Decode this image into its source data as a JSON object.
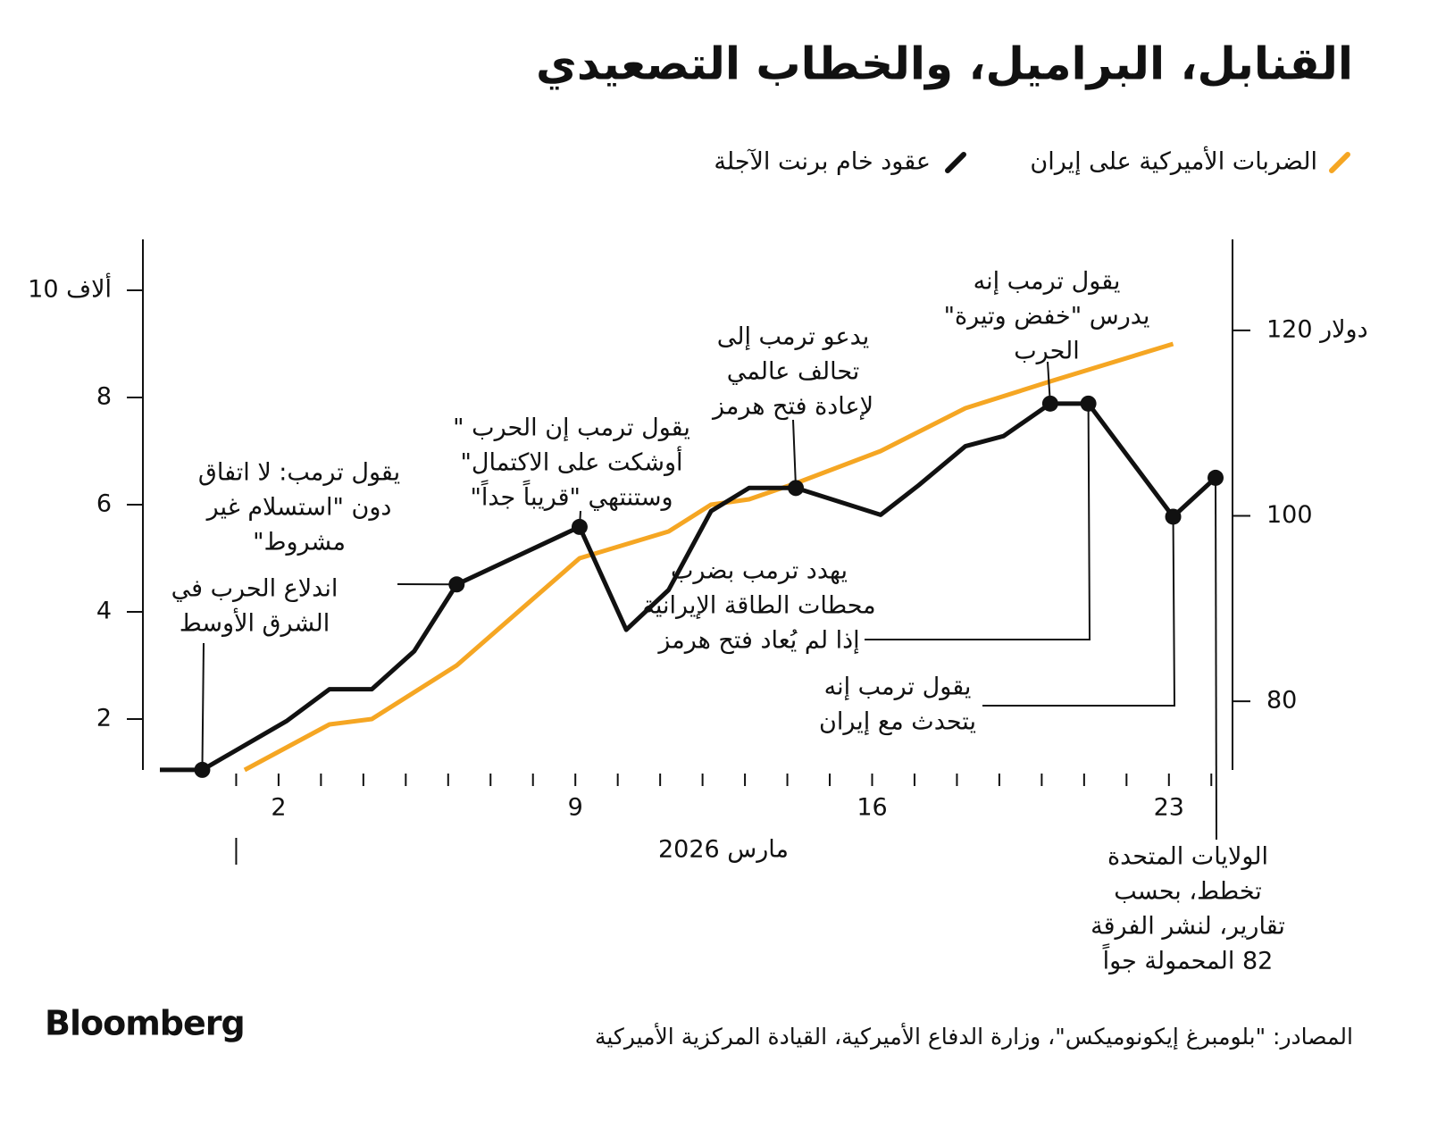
{
  "chart_data": {
    "type": "line",
    "title": "القنابل، البراميل، والخطاب التصعيدي",
    "x_label": "مارس 2026",
    "xlim": [
      -1.2,
      24.5
    ],
    "xticks": [
      2,
      9,
      16,
      23
    ],
    "xticks_minor": [
      3,
      4,
      5,
      6,
      7,
      8,
      10,
      11,
      12,
      13,
      14,
      15,
      17,
      18,
      19,
      20,
      21,
      22,
      24
    ],
    "month_start": 1,
    "ylim": [
      1,
      11
    ],
    "yticks": [
      2,
      4,
      6,
      8,
      {
        "value": 10,
        "label": "10 ألاف"
      }
    ],
    "y2lim": [
      72.3,
      130.1
    ],
    "y2ticks": [
      80,
      100,
      {
        "value": 120,
        "label": "120 دولار"
      }
    ],
    "series": [
      {
        "name": "الضربات الأميركية على إيران",
        "color": "#f5a623",
        "x": [
          1.2,
          3.2,
          4.2,
          6.2,
          9.1,
          11.2,
          12.2,
          13.1,
          14.2,
          16.2,
          18.2,
          20.2,
          23.1
        ],
        "values": [
          1.05,
          1.9,
          2.0,
          3.0,
          5.0,
          5.5,
          6.0,
          6.1,
          6.4,
          7.0,
          7.8,
          8.3,
          9.0
        ]
      },
      {
        "name": "عقود خام برنت الآجلة",
        "color": "#111111",
        "axis": "y2",
        "x": [
          -0.8,
          0.2,
          2.2,
          3.2,
          4.2,
          5.2,
          6.2,
          9.1,
          10.2,
          11.2,
          12.2,
          13.1,
          14.2,
          16.2,
          17.1,
          18.2,
          19.1,
          20.2,
          21.1,
          23.1,
          24.1
        ],
        "values": [
          72.6,
          72.6,
          77.9,
          81.3,
          81.3,
          85.4,
          92.6,
          98.8,
          87.7,
          92.0,
          100.5,
          103.0,
          103.0,
          100.1,
          103.3,
          107.5,
          108.6,
          112.1,
          112.1,
          99.9,
          104.1
        ],
        "markers": [
          1,
          6,
          7,
          12,
          17,
          18,
          19,
          20
        ]
      }
    ],
    "annotations": [
      {
        "lines": [
          "اندلاع الحرب في",
          "الشرق الأوسط"
        ],
        "point": 1
      },
      {
        "lines": [
          "يقول ترمب: لا اتفاق",
          "دون \"استسلام غير",
          "مشروط\""
        ],
        "point": 6
      },
      {
        "lines": [
          "يقول ترمب إن الحرب \"",
          "أوشكت على الاكتمال\"",
          "وستنتهي \"قريباً جداً\""
        ],
        "point": 7
      },
      {
        "lines": [
          "يدعو ترمب إلى",
          "تحالف عالمي",
          "لإعادة فتح هرمز"
        ],
        "point": 12
      },
      {
        "lines": [
          "يقول ترمب إنه",
          "يدرس \"خفض وتيرة\"",
          "الحرب"
        ],
        "point": 17
      },
      {
        "lines": [
          "يهدد ترمب بضرب",
          "محطات الطاقة الإيرانية",
          "إذا لم يُعاد فتح هرمز"
        ],
        "point": 18
      },
      {
        "lines": [
          "يقول ترمب إنه",
          "يتحدث مع إيران"
        ],
        "point": 19
      },
      {
        "lines": [
          "الولايات المتحدة",
          "تخطط، بحسب",
          "تقارير، لنشر الفرقة",
          "82 المحمولة جواً"
        ],
        "point": 20
      }
    ],
    "source": "المصادر: \"بلومبرغ إيكونوميكس\"، وزارة الدفاع الأميركية، القيادة المركزية الأميركية",
    "brand": "Bloomberg"
  }
}
